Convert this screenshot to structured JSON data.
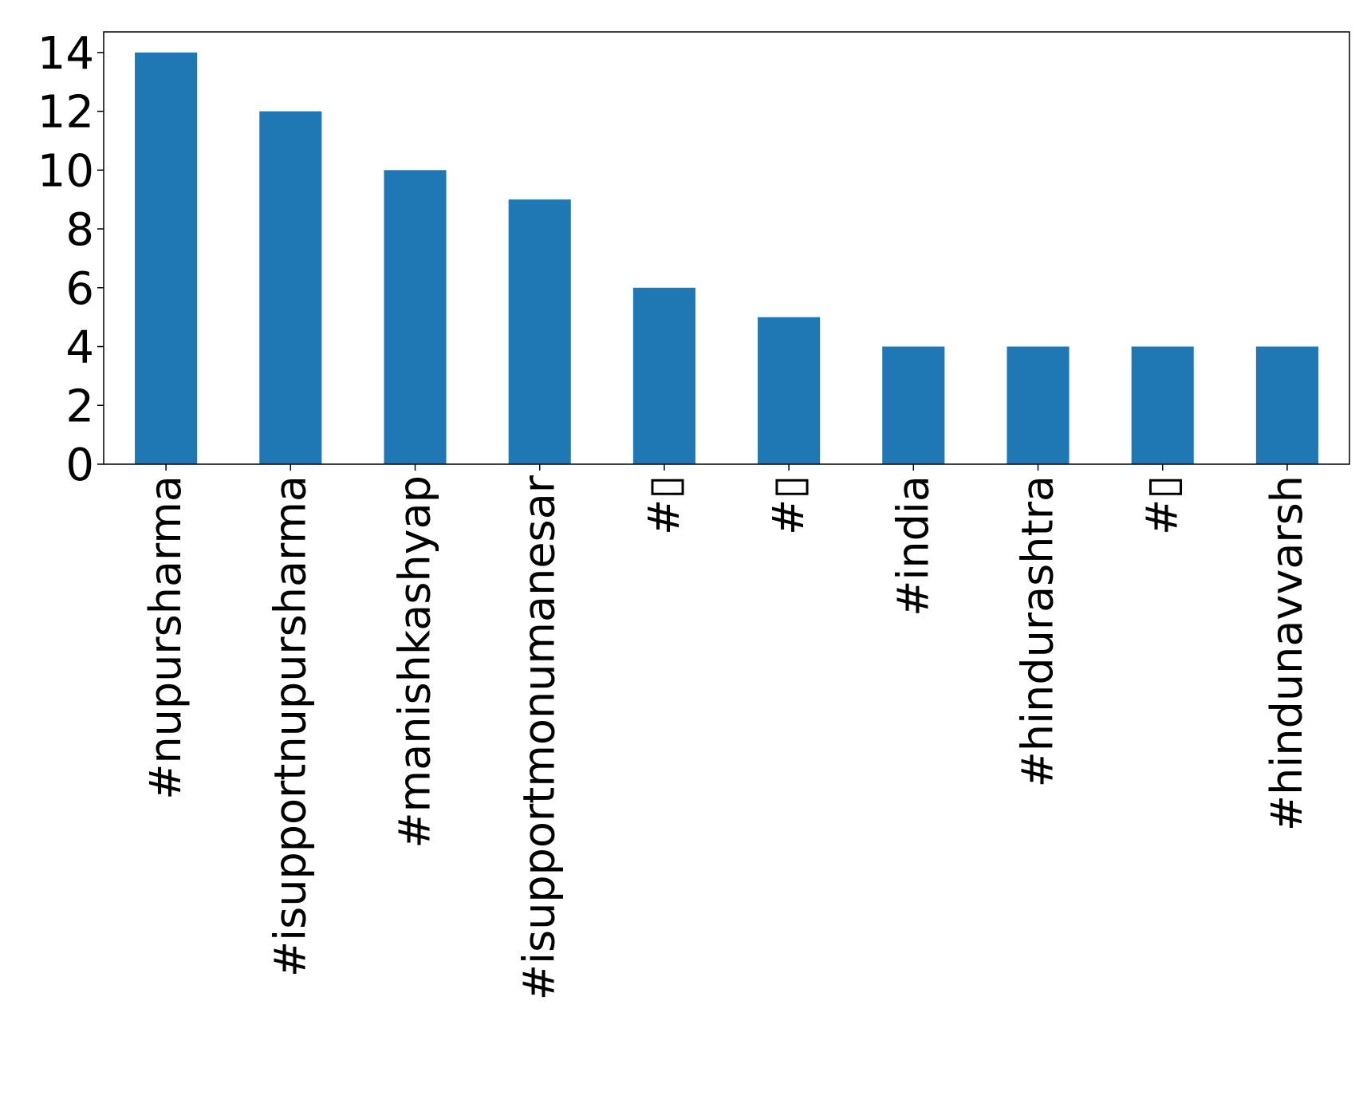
{
  "chart_data": {
    "type": "bar",
    "title": "",
    "xlabel": "",
    "ylabel": "",
    "categories": [
      "#nupursharma",
      "#isupportnupursharma",
      "#manishkashyap",
      "#isupportmonumanesar",
      "#▯",
      "#▯",
      "#india",
      "#hindurashtra",
      "#▯",
      "#hindunavvarsh"
    ],
    "values": [
      14,
      12,
      10,
      9,
      6,
      5,
      4,
      4,
      4,
      4
    ],
    "ylim": [
      0,
      14.7
    ],
    "yticks": [
      0,
      2,
      4,
      6,
      8,
      10,
      12,
      14
    ],
    "grid": false,
    "bar_color": "#1f77b4"
  }
}
